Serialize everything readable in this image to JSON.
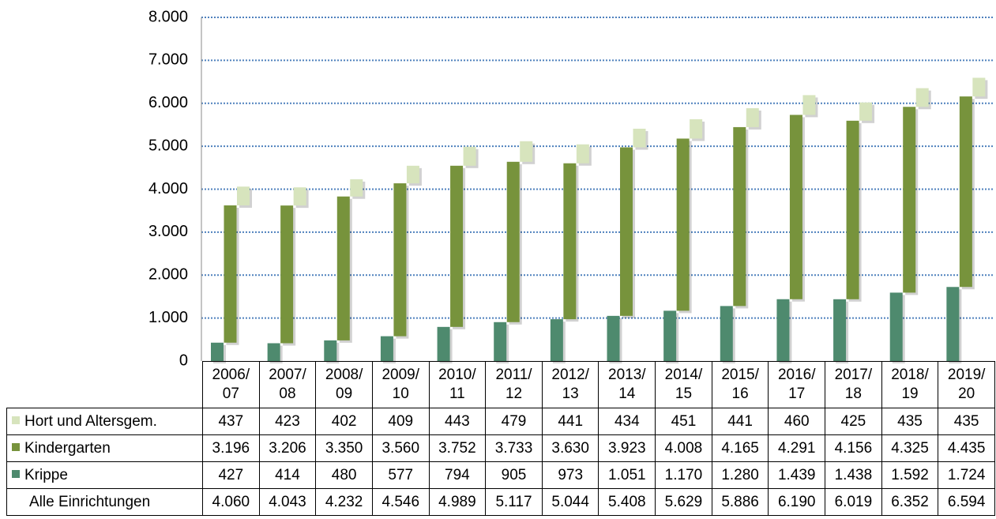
{
  "chart_data": {
    "type": "stacked_bar",
    "categories": [
      "2006/\n07",
      "2007/\n08",
      "2008/\n09",
      "2009/\n10",
      "2010/\n11",
      "2011/\n12",
      "2012/\n13",
      "2013/\n14",
      "2014/\n15",
      "2015/\n16",
      "2016/\n17",
      "2017/\n18",
      "2018/\n19",
      "2019/\n20"
    ],
    "series": [
      {
        "name": "Hort und Altersgem.",
        "color": "#d7e4bd",
        "values": [
          437,
          423,
          402,
          409,
          443,
          479,
          441,
          434,
          451,
          441,
          460,
          425,
          435,
          435
        ]
      },
      {
        "name": "Kindergarten",
        "color": "#77933c",
        "values": [
          3196,
          3206,
          3350,
          3560,
          3752,
          3733,
          3630,
          3923,
          4008,
          4165,
          4291,
          4156,
          4325,
          4435
        ],
        "value_labels": [
          "3.196",
          "3.206",
          "3.350",
          "3.560",
          "3.752",
          "3.733",
          "3.630",
          "3.923",
          "4.008",
          "4.165",
          "4.291",
          "4.156",
          "4.325",
          "4.435"
        ]
      },
      {
        "name": "Krippe",
        "color": "#4e8a6e",
        "values": [
          427,
          414,
          480,
          577,
          794,
          905,
          973,
          1051,
          1170,
          1280,
          1439,
          1438,
          1592,
          1724
        ],
        "value_labels": [
          "427",
          "414",
          "480",
          "577",
          "794",
          "905",
          "973",
          "1.051",
          "1.170",
          "1.280",
          "1.439",
          "1.438",
          "1.592",
          "1.724"
        ]
      }
    ],
    "total": {
      "name": "Alle Einrichtungen",
      "values": [
        4060,
        4043,
        4232,
        4546,
        4989,
        5117,
        5044,
        5408,
        5629,
        5886,
        6190,
        6019,
        6352,
        6594
      ],
      "value_labels": [
        "4.060",
        "4.043",
        "4.232",
        "4.546",
        "4.989",
        "5.117",
        "5.044",
        "5.408",
        "5.629",
        "5.886",
        "6.190",
        "6.019",
        "6.352",
        "6.594"
      ]
    },
    "ylim": [
      0,
      8000
    ],
    "yticks": [
      0,
      {
        "value": 1000,
        "label": "1.000"
      },
      {
        "value": 2000,
        "label": "2.000"
      },
      {
        "value": 3000,
        "label": "3.000"
      },
      {
        "value": 4000,
        "label": "4.000"
      },
      {
        "value": 5000,
        "label": "5.000"
      },
      {
        "value": 6000,
        "label": "6.000"
      },
      {
        "value": 7000,
        "label": "7.000"
      },
      {
        "value": 8000,
        "label": "8.000"
      }
    ],
    "grid": true,
    "grid_color": "#4f81bd"
  }
}
